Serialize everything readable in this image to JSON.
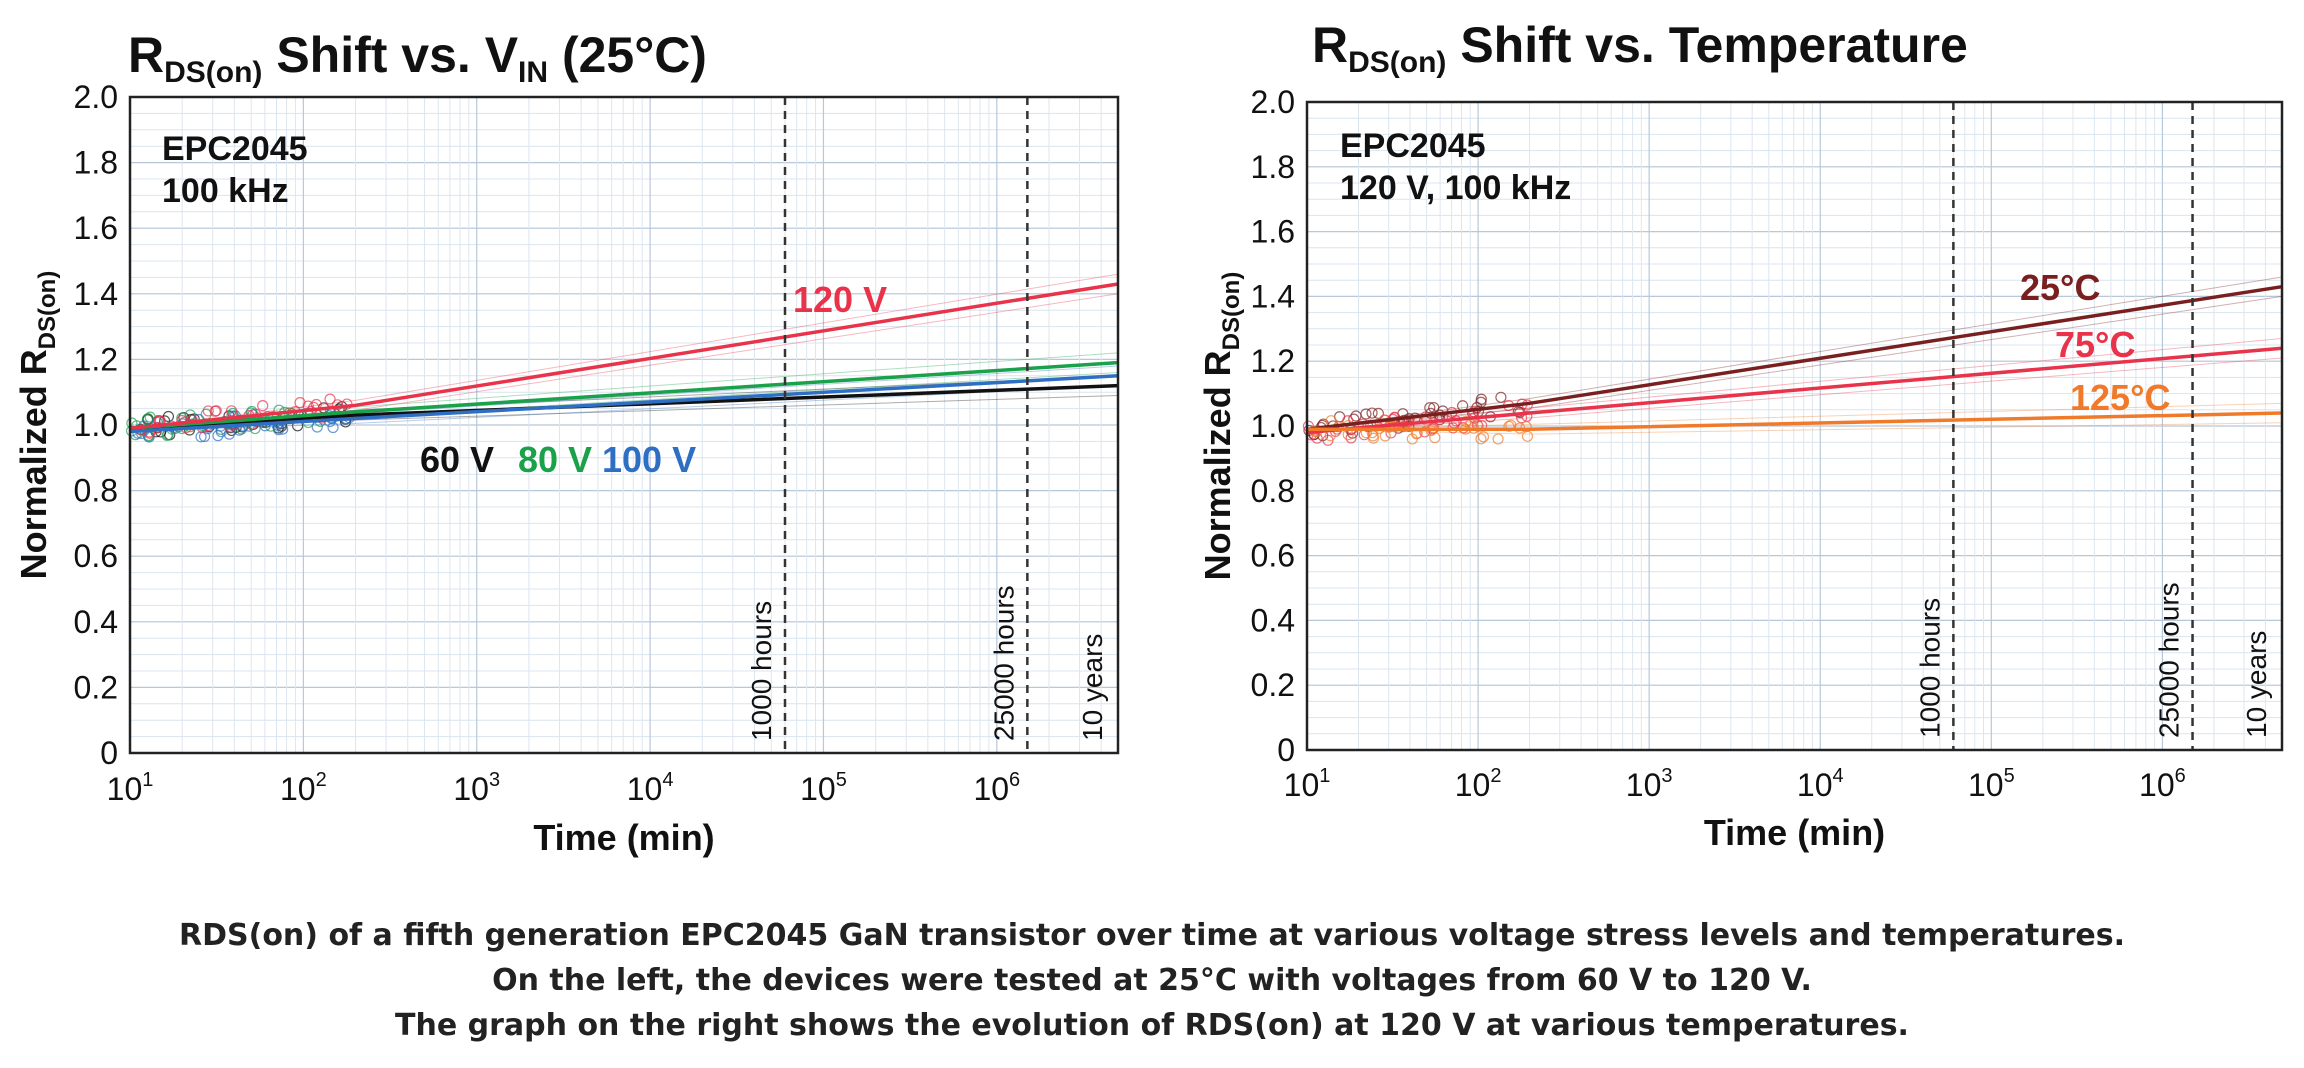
{
  "chart_data": [
    {
      "type": "line",
      "title_main": "R",
      "title_sub": "DS(on)",
      "title_rest": " Shift vs. V",
      "title_sub2": "IN",
      "title_end": " (25°C)",
      "ylabel_main": "Normalized R",
      "ylabel_sub": "DS(on)",
      "xlabel": "Time (min)",
      "x_scale": "log10",
      "xlim": [
        10,
        5000000
      ],
      "ylim": [
        0,
        2.0
      ],
      "y_ticks": [
        0,
        0.2,
        0.4,
        0.6,
        0.8,
        1.0,
        1.2,
        1.4,
        1.6,
        1.8,
        2.0
      ],
      "y_tick_labels": [
        "0",
        "0.2",
        "0.4",
        "0.6",
        "0.8",
        "1.0",
        "1.2",
        "1.4",
        "1.6",
        "1.8",
        "2.0"
      ],
      "x_ticks": [
        {
          "base": "10",
          "exp": "1",
          "value": 10
        },
        {
          "base": "10",
          "exp": "2",
          "value": 100
        },
        {
          "base": "10",
          "exp": "3",
          "value": 1000
        },
        {
          "base": "10",
          "exp": "4",
          "value": 10000
        },
        {
          "base": "10",
          "exp": "5",
          "value": 100000
        },
        {
          "base": "10",
          "exp": "6",
          "value": 1000000
        }
      ],
      "annotations": [
        {
          "line1": "EPC2045",
          "line2": "100 kHz"
        }
      ],
      "markers": [
        {
          "label": "1000 hours",
          "x": 60000
        },
        {
          "label": "25000 hours",
          "x": 1500000
        },
        {
          "label": "10 years",
          "x": 5000000
        }
      ],
      "series": [
        {
          "name": "60 V",
          "color": "#111111",
          "x": [
            10,
            200,
            5000000
          ],
          "y": [
            0.99,
            1.03,
            1.12
          ]
        },
        {
          "name": "80 V",
          "color": "#1aa14a",
          "x": [
            10,
            200,
            5000000
          ],
          "y": [
            0.99,
            1.04,
            1.19
          ]
        },
        {
          "name": "100 V",
          "color": "#2e6fc4",
          "x": [
            10,
            200,
            5000000
          ],
          "y": [
            0.98,
            1.02,
            1.15
          ]
        },
        {
          "name": "120 V",
          "color": "#e8334a",
          "x": [
            10,
            200,
            5000000
          ],
          "y": [
            0.99,
            1.06,
            1.43
          ]
        }
      ],
      "series_labels": [
        {
          "text": "60 V",
          "color": "#111111"
        },
        {
          "text": "80 V",
          "color": "#1aa14a"
        },
        {
          "text": "100 V",
          "color": "#2e6fc4"
        },
        {
          "text": "120 V",
          "color": "#e8334a"
        }
      ]
    },
    {
      "type": "line",
      "title_main": "R",
      "title_sub": "DS(on)",
      "title_rest": " Shift vs. Temperature",
      "title_sub2": "",
      "title_end": "",
      "ylabel_main": "Normalized R",
      "ylabel_sub": "DS(on)",
      "xlabel": "Time (min)",
      "x_scale": "log10",
      "xlim": [
        10,
        5000000
      ],
      "ylim": [
        0,
        2.0
      ],
      "y_ticks": [
        0,
        0.2,
        0.4,
        0.6,
        0.8,
        1.0,
        1.2,
        1.4,
        1.6,
        1.8,
        2.0
      ],
      "y_tick_labels": [
        "0",
        "0.2",
        "0.4",
        "0.6",
        "0.8",
        "1.0",
        "1.2",
        "1.4",
        "1.6",
        "1.8",
        "2.0"
      ],
      "x_ticks": [
        {
          "base": "10",
          "exp": "1",
          "value": 10
        },
        {
          "base": "10",
          "exp": "2",
          "value": 100
        },
        {
          "base": "10",
          "exp": "3",
          "value": 1000
        },
        {
          "base": "10",
          "exp": "4",
          "value": 10000
        },
        {
          "base": "10",
          "exp": "5",
          "value": 100000
        },
        {
          "base": "10",
          "exp": "6",
          "value": 1000000
        }
      ],
      "annotations": [
        {
          "line1": "EPC2045",
          "line2": "120 V, 100 kHz"
        }
      ],
      "markers": [
        {
          "label": "1000 hours",
          "x": 60000
        },
        {
          "label": "25000 hours",
          "x": 1500000
        },
        {
          "label": "10 years",
          "x": 5000000
        }
      ],
      "series": [
        {
          "name": "25°C",
          "color": "#7a1f1f",
          "x": [
            10,
            200,
            5000000
          ],
          "y": [
            0.99,
            1.07,
            1.43
          ]
        },
        {
          "name": "75°C",
          "color": "#e8334a",
          "x": [
            10,
            200,
            5000000
          ],
          "y": [
            0.98,
            1.04,
            1.24
          ]
        },
        {
          "name": "125°C",
          "color": "#f07a2a",
          "x": [
            10,
            200,
            5000000
          ],
          "y": [
            0.99,
            0.99,
            1.04
          ]
        }
      ],
      "series_labels": [
        {
          "text": "25°C",
          "color": "#7a1f1f"
        },
        {
          "text": "75°C",
          "color": "#e8334a"
        },
        {
          "text": "125°C",
          "color": "#f07a2a"
        }
      ]
    }
  ],
  "caption": {
    "line1": "RDS(on) of a fifth generation EPC2045 GaN transistor over time at various voltage stress levels and temperatures.",
    "line2": "On the left, the devices were tested at 25°C with voltages from 60 V to 120 V.",
    "line3": "The graph on  the right shows the evolution of RDS(on) at 120 V at various temperatures."
  }
}
